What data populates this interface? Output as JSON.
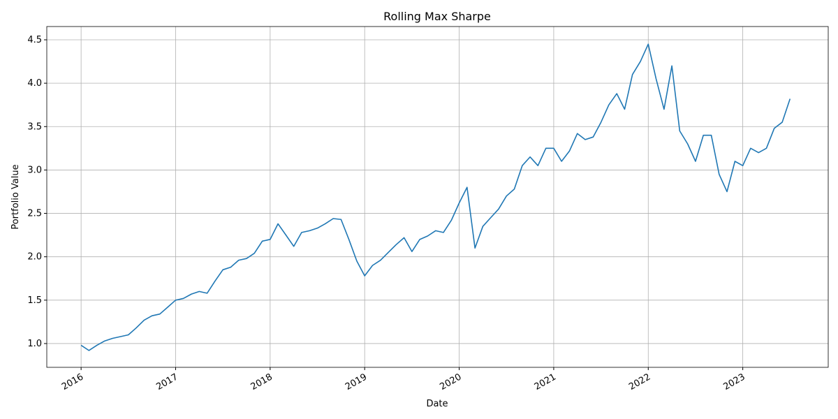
{
  "chart_data": {
    "type": "line",
    "title": "Rolling Max Sharpe",
    "x_label": "Date",
    "y_label": "Portfolio Value",
    "color": "#1f77b4",
    "grid": true,
    "x": [
      2016,
      2016.083,
      2016.167,
      2016.25,
      2016.333,
      2016.417,
      2016.5,
      2016.583,
      2016.667,
      2016.75,
      2016.833,
      2016.917,
      2017,
      2017.083,
      2017.167,
      2017.25,
      2017.333,
      2017.417,
      2017.5,
      2017.583,
      2017.667,
      2017.75,
      2017.833,
      2017.917,
      2018,
      2018.083,
      2018.167,
      2018.25,
      2018.333,
      2018.417,
      2018.5,
      2018.583,
      2018.667,
      2018.75,
      2018.833,
      2018.917,
      2019,
      2019.083,
      2019.167,
      2019.25,
      2019.333,
      2019.417,
      2019.5,
      2019.583,
      2019.667,
      2019.75,
      2019.833,
      2019.917,
      2020,
      2020.083,
      2020.167,
      2020.25,
      2020.333,
      2020.417,
      2020.5,
      2020.583,
      2020.667,
      2020.75,
      2020.833,
      2020.917,
      2021,
      2021.083,
      2021.167,
      2021.25,
      2021.333,
      2021.417,
      2021.5,
      2021.583,
      2021.667,
      2021.75,
      2021.833,
      2021.917,
      2022,
      2022.083,
      2022.167,
      2022.25,
      2022.333,
      2022.417,
      2022.5,
      2022.583,
      2022.667,
      2022.75,
      2022.833,
      2022.917,
      2023,
      2023.083,
      2023.167,
      2023.25,
      2023.333,
      2023.417,
      2023.5
    ],
    "values": [
      0.98,
      0.92,
      0.98,
      1.03,
      1.06,
      1.08,
      1.1,
      1.18,
      1.27,
      1.32,
      1.34,
      1.42,
      1.5,
      1.52,
      1.57,
      1.6,
      1.58,
      1.72,
      1.85,
      1.88,
      1.96,
      1.98,
      2.04,
      2.18,
      2.2,
      2.38,
      2.25,
      2.12,
      2.28,
      2.3,
      2.33,
      2.38,
      2.44,
      2.43,
      2.2,
      1.95,
      1.78,
      1.9,
      1.96,
      2.05,
      2.14,
      2.22,
      2.06,
      2.2,
      2.24,
      2.3,
      2.28,
      2.42,
      2.62,
      2.8,
      2.1,
      2.35,
      2.45,
      2.55,
      2.7,
      2.78,
      3.05,
      3.15,
      3.05,
      3.25,
      3.25,
      3.1,
      3.22,
      3.42,
      3.35,
      3.38,
      3.55,
      3.75,
      3.88,
      3.7,
      4.1,
      4.25,
      4.45,
      4.05,
      3.7,
      4.2,
      3.45,
      3.3,
      3.1,
      3.4,
      3.4,
      2.95,
      2.75,
      3.1,
      3.05,
      3.25,
      3.2,
      3.25,
      3.48,
      3.55,
      3.82
    ],
    "xlim": [
      2015.637,
      2023.904
    ],
    "ylim": [
      0.726,
      4.653
    ],
    "xticks": [
      2016,
      2017,
      2018,
      2019,
      2020,
      2021,
      2022,
      2023
    ],
    "yticks": [
      {
        "value": 1,
        "label": "1.0"
      },
      1.5,
      {
        "value": 2,
        "label": "2.0"
      },
      2.5,
      {
        "value": 3,
        "label": "3.0"
      },
      3.5,
      {
        "value": 4,
        "label": "4.0"
      },
      4.5
    ]
  }
}
